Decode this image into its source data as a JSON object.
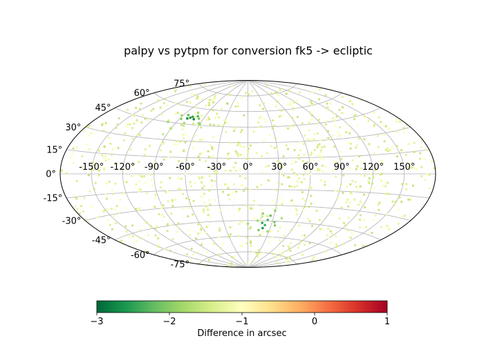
{
  "chart_data": {
    "type": "scatter",
    "projection": "aitoff",
    "title": "palpy vs pytpm for conversion fk5 -> ecliptic",
    "grid": true,
    "lon_ticks": [
      -150,
      -120,
      -90,
      -60,
      -30,
      0,
      30,
      60,
      90,
      120,
      150
    ],
    "lat_ticks": [
      -75,
      -60,
      -45,
      -30,
      -15,
      0,
      15,
      30,
      45,
      60,
      75
    ],
    "tick_suffix": "°",
    "colormap": "RdYlGn_r",
    "colorbar": {
      "label": "Difference in arcsec",
      "range": [
        -3,
        1
      ],
      "ticks": [
        -3,
        -2,
        -1,
        0,
        1
      ],
      "tick_labels": [
        "−3",
        "−2",
        "−1",
        "0",
        "1"
      ],
      "position": "bottom",
      "colors": [
        "#006837",
        "#1a9850",
        "#66bd63",
        "#a6d96a",
        "#d9ef8b",
        "#ffffbf",
        "#fee08b",
        "#fdae61",
        "#f46d43",
        "#d73027",
        "#a50026"
      ]
    },
    "points": [
      {
        "lon": -78,
        "lat": 51,
        "value": -2.6
      },
      {
        "lon": -76,
        "lat": 52,
        "value": -2.5
      },
      {
        "lon": -81,
        "lat": 50,
        "value": -2.7
      },
      {
        "lon": -72,
        "lat": 50,
        "value": -2.8
      },
      {
        "lon": -70,
        "lat": 53,
        "value": -2.3
      },
      {
        "lon": -84,
        "lat": 53,
        "value": -2.2
      },
      {
        "lon": -88,
        "lat": 49,
        "value": -2.0
      },
      {
        "lon": -66,
        "lat": 51,
        "value": -2.1
      },
      {
        "lon": -62,
        "lat": 47,
        "value": -1.9
      },
      {
        "lon": -74,
        "lat": 56,
        "value": -1.8
      },
      {
        "lon": -92,
        "lat": 52,
        "value": -1.8
      },
      {
        "lon": -80,
        "lat": 46,
        "value": -1.7
      },
      {
        "lon": 20,
        "lat": -52,
        "value": -2.6
      },
      {
        "lon": 22,
        "lat": -49,
        "value": -2.4
      },
      {
        "lon": 18,
        "lat": -47,
        "value": -2.5
      },
      {
        "lon": 24,
        "lat": -44,
        "value": -2.3
      },
      {
        "lon": 26,
        "lat": -40,
        "value": -2.2
      },
      {
        "lon": 33,
        "lat": -46,
        "value": -2.1
      },
      {
        "lon": 35,
        "lat": -49,
        "value": -2.0
      },
      {
        "lon": 15,
        "lat": -54,
        "value": -2.0
      },
      {
        "lon": 17,
        "lat": -38,
        "value": -1.9
      },
      {
        "lon": 30,
        "lat": -35,
        "value": -1.9
      },
      {
        "lon": 28,
        "lat": -55,
        "value": -1.8
      },
      {
        "lon": 12,
        "lat": -45,
        "value": -1.8
      },
      {
        "lon": 0,
        "lat": -48,
        "value": -1.8
      },
      {
        "lon": 40,
        "lat": -42,
        "value": -1.7
      },
      {
        "lon": -60,
        "lat": 46,
        "value": -1.9
      },
      {
        "lon": -100,
        "lat": 45,
        "value": -1.8
      },
      {
        "lon": -40,
        "lat": 67,
        "value": -1.7
      },
      {
        "lon": -90,
        "lat": 40,
        "value": -1.7
      },
      {
        "lon": 60,
        "lat": 68,
        "value": -1.4
      },
      {
        "lon": -145,
        "lat": 20,
        "value": -1.6
      },
      {
        "lon": 150,
        "lat": -20,
        "value": -1.5
      },
      {
        "lon": -10,
        "lat": 30,
        "value": -1.5
      },
      {
        "lon": 45,
        "lat": -25,
        "value": -1.5
      },
      {
        "lon": -120,
        "lat": -40,
        "value": -1.4
      },
      {
        "lon": 110,
        "lat": 35,
        "value": -1.4
      },
      {
        "lon": -30,
        "lat": -60,
        "value": -1.6
      },
      {
        "lon": 5,
        "lat": -65,
        "value": -1.5
      }
    ]
  }
}
